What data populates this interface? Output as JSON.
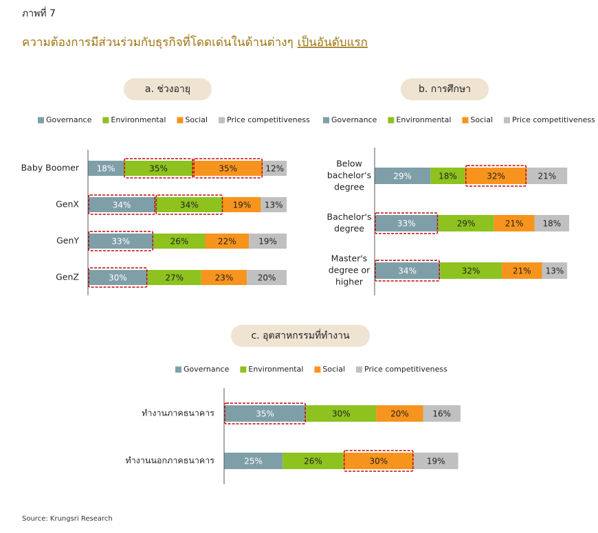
{
  "figure_label": "ภาพที่ 7",
  "title": "ความต้องการมีส่วนร่วมกับธุรกิจที่โดดเด่นในด้านต่างๆ",
  "title_emphasis": "เป็นอันดับแรก",
  "source": "Source: Krungsri Research",
  "chart_data": [
    {
      "type": "stacked_barh",
      "subtitle": "a. ช่วงอายุ",
      "categories": [
        [
          "Baby Boomer"
        ],
        [
          "GenX"
        ],
        [
          "GenY"
        ],
        [
          "GenZ"
        ]
      ],
      "series": [
        {
          "name": "Governance",
          "color": "#7f9fa8",
          "values": [
            18,
            34,
            33,
            30
          ],
          "value_labels": [
            "18%",
            "34%",
            "33%",
            "30%"
          ],
          "highlighted": [
            false,
            true,
            true,
            true
          ]
        },
        {
          "name": "Environmental",
          "color": "#8dc21f",
          "values": [
            35,
            34,
            26,
            27
          ],
          "value_labels": [
            "35%",
            "34%",
            "26%",
            "27%"
          ],
          "highlighted": [
            true,
            true,
            false,
            false
          ]
        },
        {
          "name": "Social",
          "color": "#f7941d",
          "values": [
            35,
            19,
            22,
            23
          ],
          "value_labels": [
            "35%",
            "19%",
            "22%",
            "23%"
          ],
          "highlighted": [
            true,
            false,
            false,
            false
          ]
        },
        {
          "name": "Price competitiveness",
          "color": "#c0c0c0",
          "values": [
            12,
            13,
            19,
            20
          ],
          "value_labels": [
            "12%",
            "13%",
            "19%",
            "20%"
          ],
          "highlighted": [
            false,
            false,
            false,
            false
          ]
        }
      ]
    },
    {
      "type": "stacked_barh",
      "subtitle": "b. การศึกษา",
      "categories": [
        [
          "Below",
          "bachelor's",
          "degree"
        ],
        [
          "Bachelor's",
          "degree"
        ],
        [
          "Master's",
          "degree or",
          "higher"
        ]
      ],
      "series": [
        {
          "name": "Governance",
          "color": "#7f9fa8",
          "values": [
            29,
            33,
            34
          ],
          "value_labels": [
            "29%",
            "33%",
            "34%"
          ],
          "highlighted": [
            false,
            true,
            true
          ]
        },
        {
          "name": "Environmental",
          "color": "#8dc21f",
          "values": [
            18,
            29,
            32
          ],
          "value_labels": [
            "18%",
            "29%",
            "32%"
          ],
          "highlighted": [
            false,
            false,
            false
          ]
        },
        {
          "name": "Social",
          "color": "#f7941d",
          "values": [
            32,
            21,
            21
          ],
          "value_labels": [
            "32%",
            "21%",
            "21%"
          ],
          "highlighted": [
            true,
            false,
            false
          ]
        },
        {
          "name": "Price competitiveness",
          "color": "#c0c0c0",
          "values": [
            21,
            18,
            13
          ],
          "value_labels": [
            "21%",
            "18%",
            "13%"
          ],
          "highlighted": [
            false,
            false,
            false
          ]
        }
      ]
    },
    {
      "type": "stacked_barh",
      "subtitle": "c. อุตสาหกรรมที่ทำงาน",
      "categories": [
        [
          "ทำงานภาคธนาคาร"
        ],
        [
          "ทำงานนอกภาคธนาคาร"
        ]
      ],
      "series": [
        {
          "name": "Governance",
          "color": "#7f9fa8",
          "values": [
            35,
            25
          ],
          "value_labels": [
            "35%",
            "25%"
          ],
          "highlighted": [
            true,
            false
          ]
        },
        {
          "name": "Environmental",
          "color": "#8dc21f",
          "values": [
            30,
            26
          ],
          "value_labels": [
            "30%",
            "26%"
          ],
          "highlighted": [
            false,
            false
          ]
        },
        {
          "name": "Social",
          "color": "#f7941d",
          "values": [
            20,
            30
          ],
          "value_labels": [
            "20%",
            "30%"
          ],
          "highlighted": [
            false,
            true
          ]
        },
        {
          "name": "Price competitiveness",
          "color": "#c0c0c0",
          "values": [
            16,
            19
          ],
          "value_labels": [
            "16%",
            "19%"
          ],
          "highlighted": [
            false,
            false
          ]
        }
      ]
    }
  ]
}
